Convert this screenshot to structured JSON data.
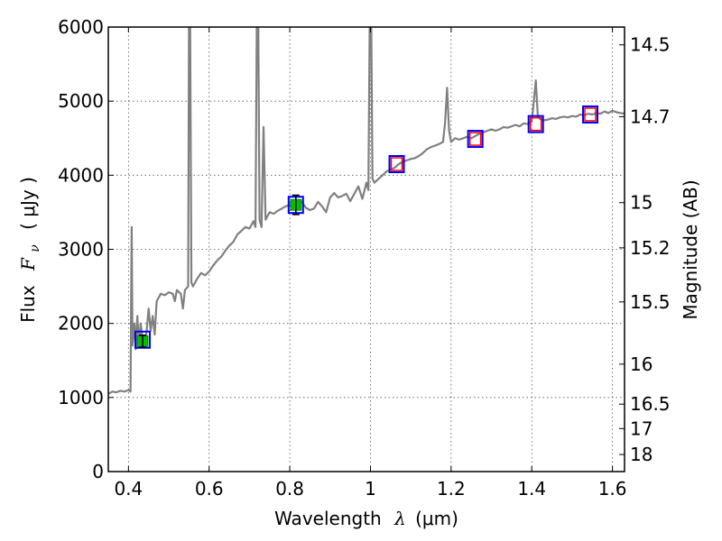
{
  "chart_data": {
    "type": "line",
    "title": "",
    "xlabel_text": "Wavelength",
    "xlabel_symbol": "λ",
    "xlabel_unit": "(μm)",
    "ylabel_text": "Flux",
    "ylabel_symbol": "F",
    "ylabel_sub": "ν",
    "ylabel_unit": "( μJy )",
    "y2label": "Magnitude (AB)",
    "xlim": [
      0.35,
      1.63
    ],
    "ylim": [
      0,
      6000
    ],
    "grid": true,
    "x_ticks": [
      0.4,
      0.6,
      0.8,
      1.0,
      1.2,
      1.4,
      1.6
    ],
    "x_tick_labels": [
      "0.4",
      "0.6",
      "0.8",
      "1",
      "1.2",
      "1.4",
      "1.6"
    ],
    "y_ticks": [
      0,
      1000,
      2000,
      3000,
      4000,
      5000,
      6000
    ],
    "y_tick_labels": [
      "0",
      "1000",
      "2000",
      "3000",
      "4000",
      "5000",
      "6000"
    ],
    "mag_ticks": [
      {
        "flux": 5760,
        "label": "14.5"
      },
      {
        "flux": 4790,
        "label": "14.7"
      },
      {
        "flux": 3630,
        "label": "15"
      },
      {
        "flux": 3020,
        "label": "15.2"
      },
      {
        "flux": 2290,
        "label": "15.5"
      },
      {
        "flux": 1450,
        "label": "16"
      },
      {
        "flux": 910,
        "label": "16.5"
      },
      {
        "flux": 580,
        "label": "17"
      },
      {
        "flux": 230,
        "label": "18"
      }
    ],
    "spectrum": {
      "color": "#808080",
      "points": [
        [
          0.35,
          1050
        ],
        [
          0.36,
          1080
        ],
        [
          0.37,
          1070
        ],
        [
          0.38,
          1090
        ],
        [
          0.39,
          1080
        ],
        [
          0.4,
          1100
        ],
        [
          0.405,
          1080
        ],
        [
          0.408,
          3300
        ],
        [
          0.41,
          1700
        ],
        [
          0.415,
          2000
        ],
        [
          0.418,
          1650
        ],
        [
          0.422,
          2100
        ],
        [
          0.426,
          1700
        ],
        [
          0.43,
          2000
        ],
        [
          0.435,
          1800
        ],
        [
          0.44,
          1700
        ],
        [
          0.445,
          1900
        ],
        [
          0.45,
          2200
        ],
        [
          0.455,
          1900
        ],
        [
          0.46,
          2100
        ],
        [
          0.465,
          1850
        ],
        [
          0.47,
          2300
        ],
        [
          0.48,
          2400
        ],
        [
          0.49,
          2380
        ],
        [
          0.5,
          2420
        ],
        [
          0.51,
          2400
        ],
        [
          0.515,
          2300
        ],
        [
          0.52,
          2450
        ],
        [
          0.53,
          2400
        ],
        [
          0.535,
          2200
        ],
        [
          0.54,
          2450
        ],
        [
          0.548,
          2500
        ],
        [
          0.55,
          6000
        ],
        [
          0.553,
          6000
        ],
        [
          0.556,
          2550
        ],
        [
          0.56,
          2500
        ],
        [
          0.57,
          2600
        ],
        [
          0.58,
          2680
        ],
        [
          0.59,
          2650
        ],
        [
          0.6,
          2700
        ],
        [
          0.61,
          2780
        ],
        [
          0.62,
          2850
        ],
        [
          0.63,
          2900
        ],
        [
          0.64,
          2980
        ],
        [
          0.65,
          3050
        ],
        [
          0.66,
          3100
        ],
        [
          0.67,
          3200
        ],
        [
          0.68,
          3250
        ],
        [
          0.69,
          3300
        ],
        [
          0.7,
          3280
        ],
        [
          0.71,
          3380
        ],
        [
          0.715,
          3300
        ],
        [
          0.718,
          6000
        ],
        [
          0.722,
          6000
        ],
        [
          0.725,
          3400
        ],
        [
          0.73,
          3300
        ],
        [
          0.735,
          4650
        ],
        [
          0.74,
          3400
        ],
        [
          0.75,
          3500
        ],
        [
          0.76,
          3480
        ],
        [
          0.77,
          3520
        ],
        [
          0.78,
          3550
        ],
        [
          0.79,
          3580
        ],
        [
          0.8,
          3600
        ],
        [
          0.81,
          3620
        ],
        [
          0.82,
          3600
        ],
        [
          0.83,
          3640
        ],
        [
          0.84,
          3560
        ],
        [
          0.85,
          3530
        ],
        [
          0.86,
          3550
        ],
        [
          0.87,
          3640
        ],
        [
          0.88,
          3580
        ],
        [
          0.89,
          3500
        ],
        [
          0.9,
          3700
        ],
        [
          0.91,
          3760
        ],
        [
          0.92,
          3700
        ],
        [
          0.93,
          3720
        ],
        [
          0.94,
          3750
        ],
        [
          0.95,
          3650
        ],
        [
          0.96,
          3750
        ],
        [
          0.97,
          3850
        ],
        [
          0.98,
          3680
        ],
        [
          0.99,
          3900
        ],
        [
          0.995,
          3800
        ],
        [
          0.998,
          6000
        ],
        [
          1.002,
          6000
        ],
        [
          1.005,
          3950
        ],
        [
          1.01,
          3900
        ],
        [
          1.02,
          3950
        ],
        [
          1.03,
          4000
        ],
        [
          1.04,
          4050
        ],
        [
          1.05,
          4080
        ],
        [
          1.06,
          4100
        ],
        [
          1.07,
          4150
        ],
        [
          1.08,
          4180
        ],
        [
          1.09,
          4200
        ],
        [
          1.1,
          4220
        ],
        [
          1.11,
          4230
        ],
        [
          1.12,
          4260
        ],
        [
          1.13,
          4300
        ],
        [
          1.14,
          4350
        ],
        [
          1.15,
          4380
        ],
        [
          1.16,
          4400
        ],
        [
          1.17,
          4420
        ],
        [
          1.18,
          4450
        ],
        [
          1.185,
          4700
        ],
        [
          1.19,
          5180
        ],
        [
          1.195,
          4600
        ],
        [
          1.2,
          4450
        ],
        [
          1.21,
          4500
        ],
        [
          1.22,
          4480
        ],
        [
          1.23,
          4500
        ],
        [
          1.24,
          4520
        ],
        [
          1.25,
          4500
        ],
        [
          1.26,
          4530
        ],
        [
          1.27,
          4560
        ],
        [
          1.28,
          4580
        ],
        [
          1.29,
          4600
        ],
        [
          1.3,
          4620
        ],
        [
          1.31,
          4600
        ],
        [
          1.32,
          4620
        ],
        [
          1.33,
          4650
        ],
        [
          1.34,
          4640
        ],
        [
          1.35,
          4660
        ],
        [
          1.36,
          4680
        ],
        [
          1.37,
          4660
        ],
        [
          1.38,
          4700
        ],
        [
          1.39,
          4690
        ],
        [
          1.4,
          4720
        ],
        [
          1.405,
          5000
        ],
        [
          1.41,
          5280
        ],
        [
          1.415,
          4800
        ],
        [
          1.42,
          4760
        ],
        [
          1.43,
          4740
        ],
        [
          1.44,
          4750
        ],
        [
          1.45,
          4770
        ],
        [
          1.46,
          4760
        ],
        [
          1.47,
          4780
        ],
        [
          1.48,
          4790
        ],
        [
          1.49,
          4780
        ],
        [
          1.5,
          4800
        ],
        [
          1.51,
          4790
        ],
        [
          1.52,
          4820
        ],
        [
          1.53,
          4810
        ],
        [
          1.54,
          4830
        ],
        [
          1.55,
          4820
        ],
        [
          1.56,
          4840
        ],
        [
          1.57,
          4830
        ],
        [
          1.58,
          4860
        ],
        [
          1.59,
          4840
        ],
        [
          1.6,
          4870
        ],
        [
          1.61,
          4850
        ],
        [
          1.62,
          4840
        ],
        [
          1.63,
          4830
        ]
      ]
    },
    "blue_boxes": [
      [
        0.435,
        1780
      ],
      [
        0.815,
        3600
      ],
      [
        1.065,
        4150
      ],
      [
        1.26,
        4490
      ],
      [
        1.41,
        4690
      ],
      [
        1.545,
        4820
      ]
    ],
    "red_boxes": [
      [
        1.065,
        4150
      ],
      [
        1.26,
        4490
      ],
      [
        1.41,
        4690
      ],
      [
        1.545,
        4820
      ]
    ],
    "green_points": [
      {
        "x": 0.435,
        "y": 1760,
        "err": 80
      },
      {
        "x": 0.815,
        "y": 3600,
        "err": 130
      }
    ],
    "colors": {
      "spectrum": "#808080",
      "blue_box": "#0000ff",
      "red_box": "#ff0000",
      "green_point": "#00bf00",
      "grid": "#555555"
    }
  }
}
